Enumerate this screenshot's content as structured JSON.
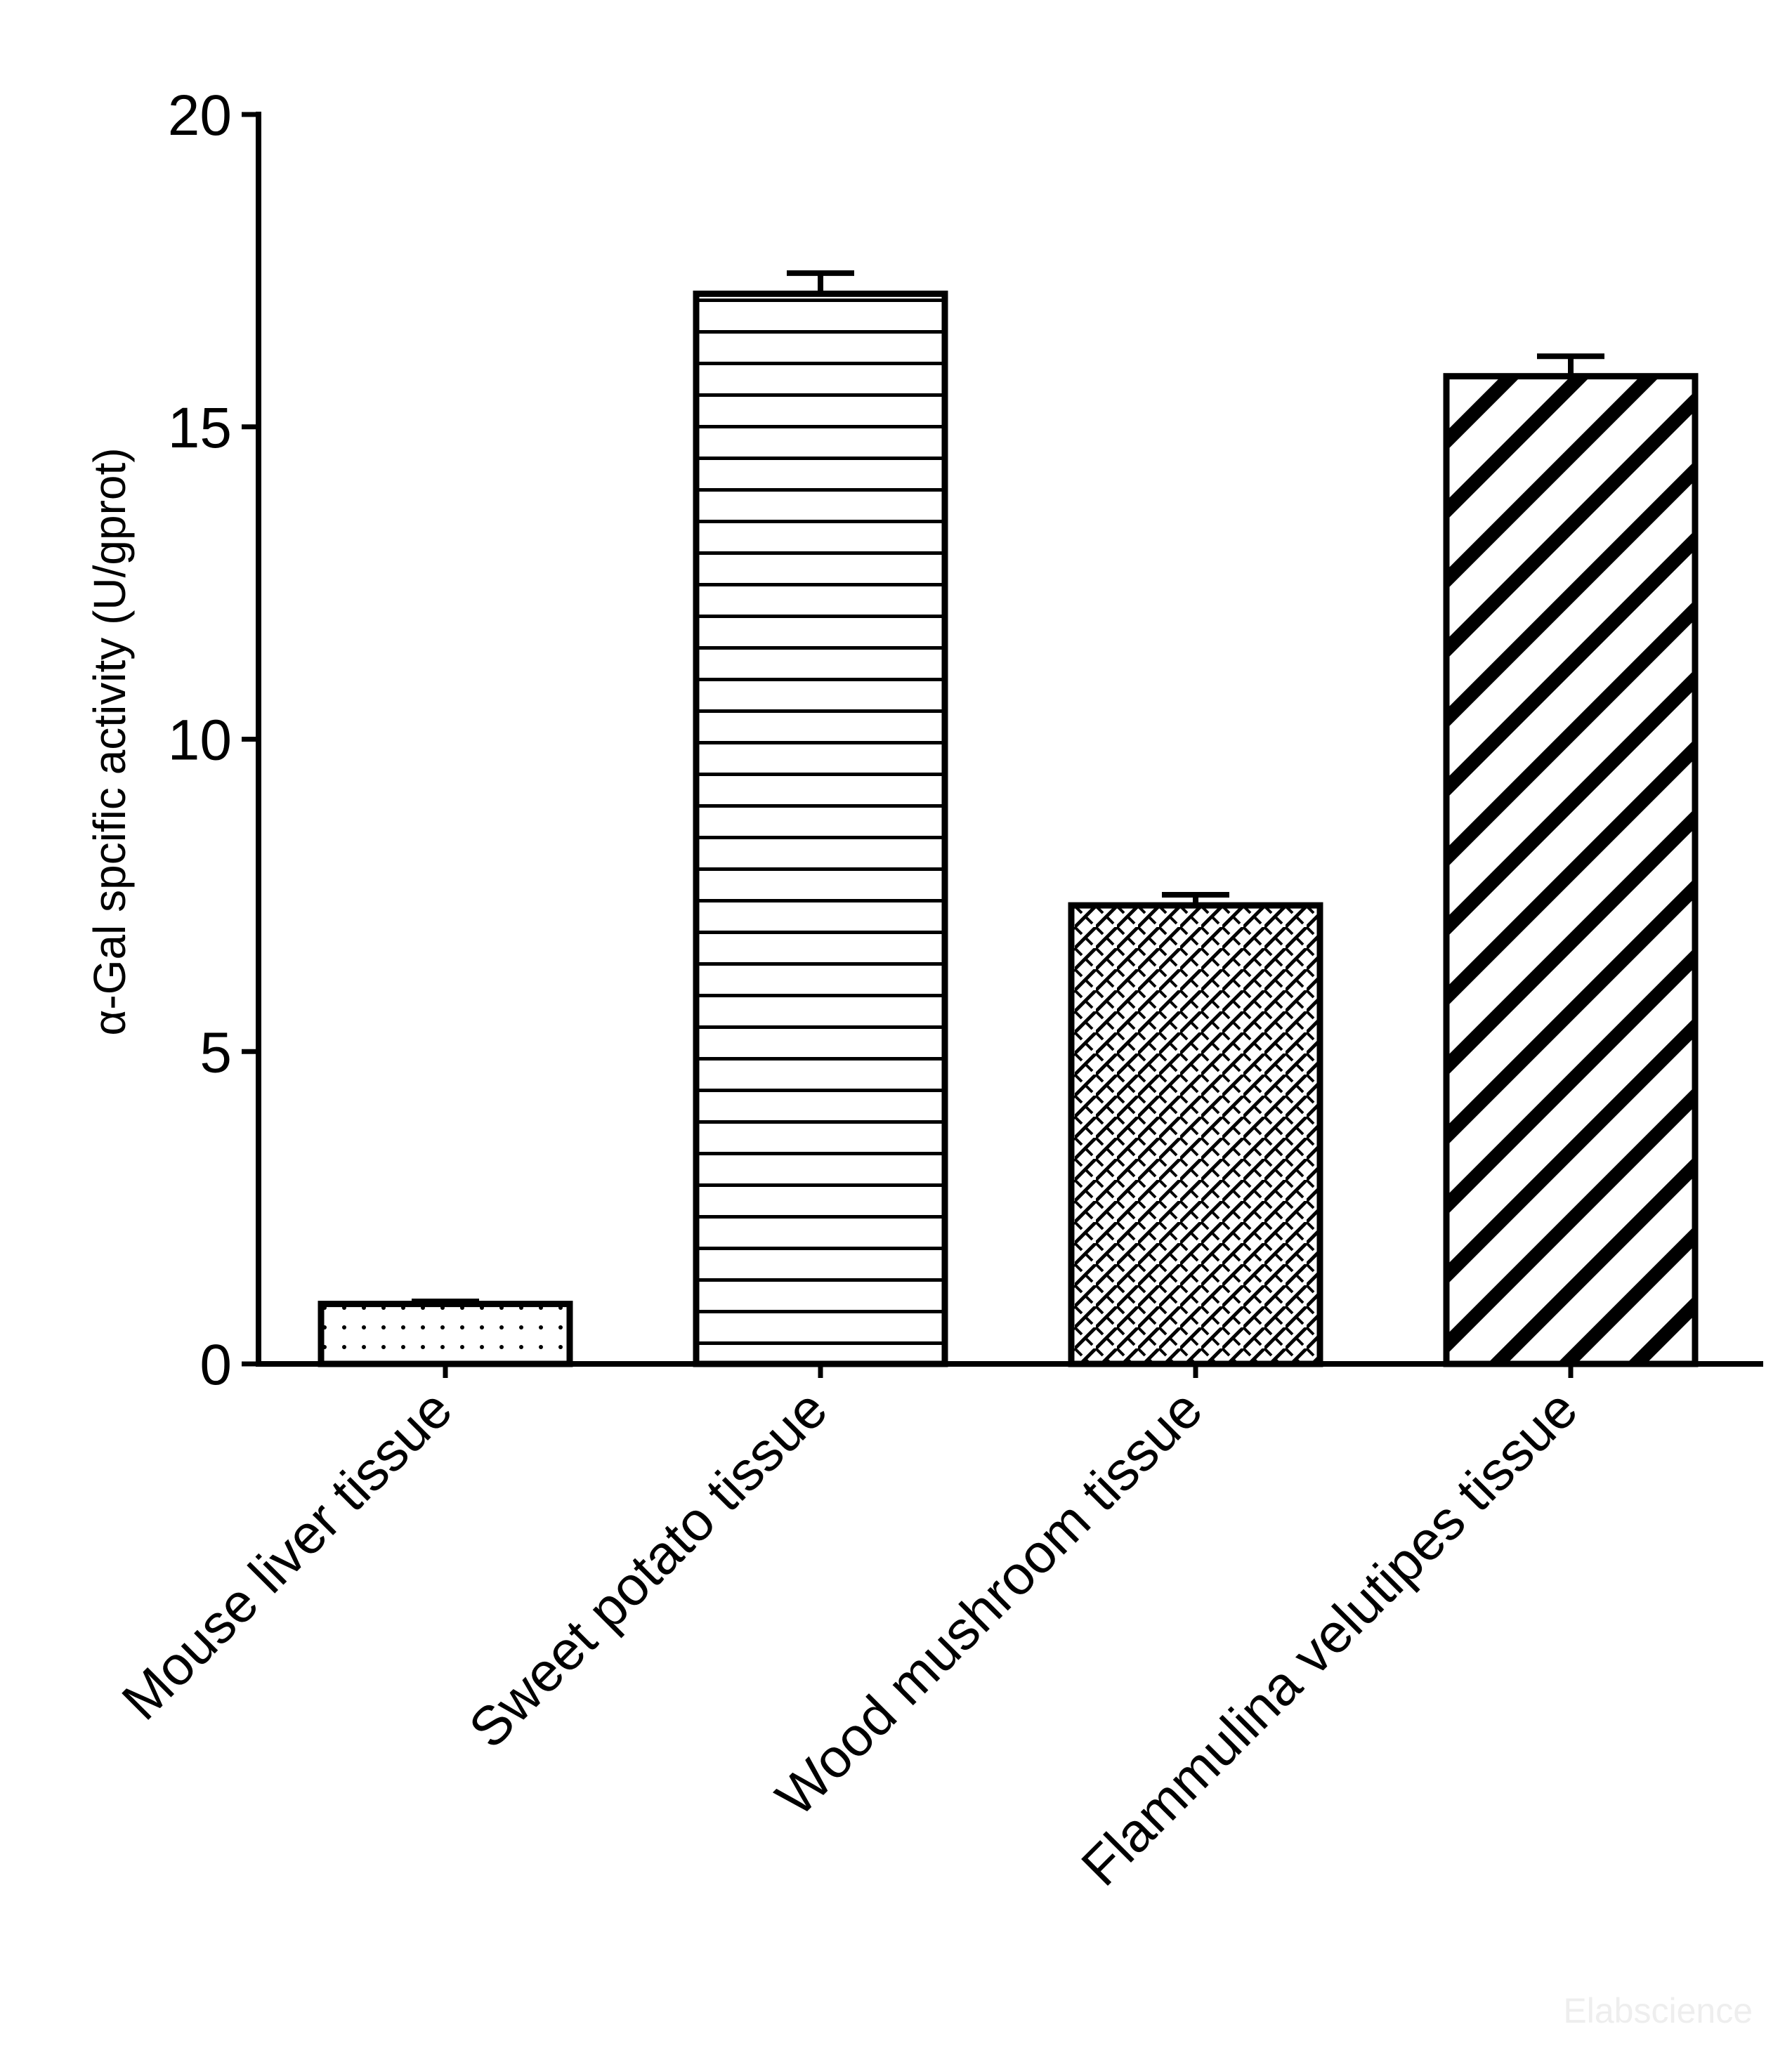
{
  "chart_data": {
    "type": "bar",
    "title": "",
    "xlabel": "",
    "ylabel": "α-Gal  spcific activity (U/gprot)",
    "ylim": [
      0,
      20
    ],
    "yticks": [
      0,
      5,
      10,
      15,
      20
    ],
    "ytick_labels": [
      "0",
      "5",
      "10",
      "15",
      "20"
    ],
    "grid": false,
    "categories": [
      "Mouse liver tissue",
      "Sweet potato tissue",
      "Wood mushroom tissue",
      "Flammulina velutipes tissue"
    ],
    "values": [
      0.96,
      17.13,
      7.34,
      15.81
    ],
    "errors": [
      0.04,
      0.33,
      0.17,
      0.32
    ],
    "patterns": [
      "dots",
      "horizontal-lines",
      "crosshatch",
      "diagonal-stripes"
    ],
    "colors": {
      "stroke": "#000000",
      "fill": "#ffffff"
    }
  },
  "watermark": "Elabscience"
}
